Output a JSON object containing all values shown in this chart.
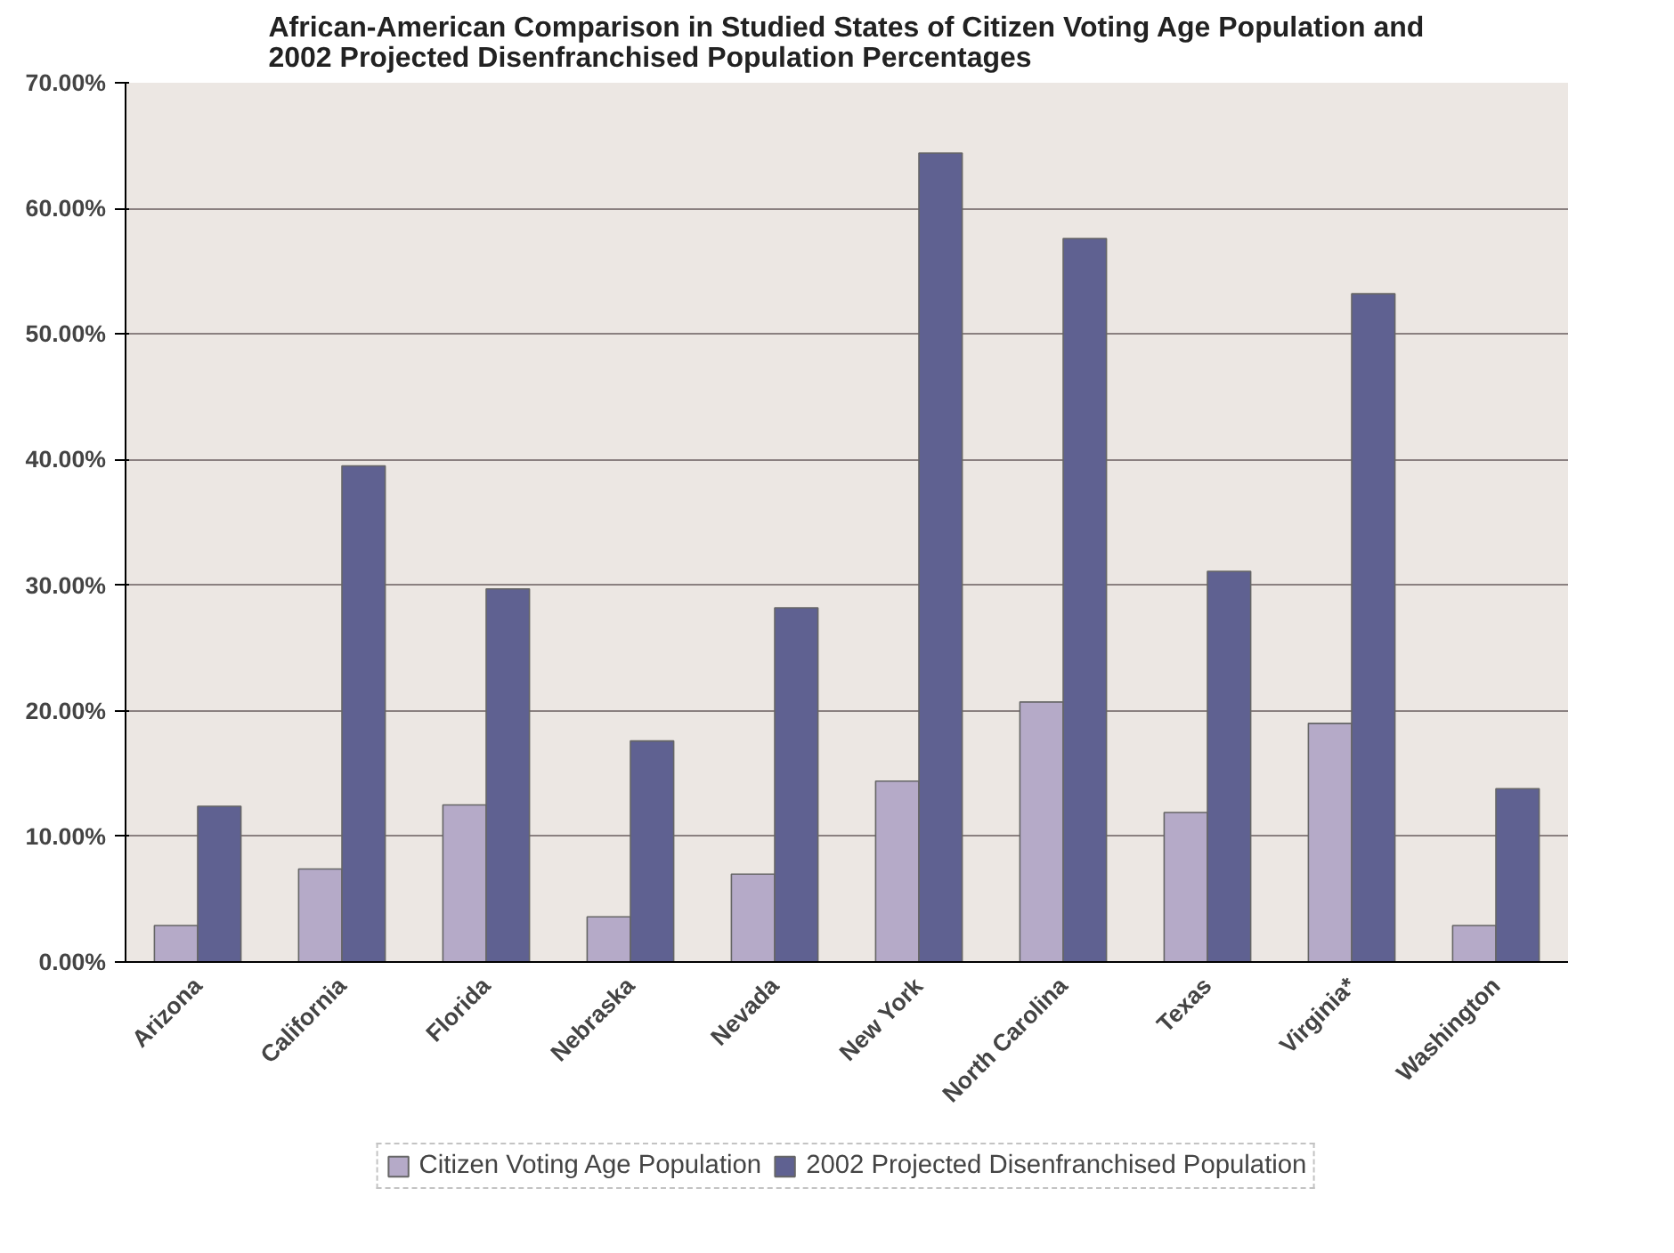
{
  "chart_data": {
    "type": "bar",
    "title": "African-American Comparison in Studied States of Citizen Voting Age Population and\n2002 Projected Disenfranchised Population Percentages",
    "categories": [
      "Arizona",
      "California",
      "Florida",
      "Nebraska",
      "Nevada",
      "New York",
      "North Carolina",
      "Texas",
      "Virginia*",
      "Washington"
    ],
    "series": [
      {
        "name": "Citizen Voting Age Population",
        "color": "#b5aac8",
        "values": [
          2.9,
          7.4,
          12.5,
          3.6,
          7.0,
          14.4,
          20.7,
          11.9,
          19.0,
          2.9
        ]
      },
      {
        "name": "2002 Projected Disenfranchised Population",
        "color": "#5f6191",
        "values": [
          12.4,
          39.5,
          29.7,
          17.6,
          28.2,
          64.4,
          57.6,
          31.1,
          53.2,
          13.8
        ]
      }
    ],
    "ylim": [
      0,
      70
    ],
    "yticks": [
      {
        "value": 0,
        "label": "0.00%"
      },
      {
        "value": 10,
        "label": "10.00%"
      },
      {
        "value": 20,
        "label": "20.00%"
      },
      {
        "value": 30,
        "label": "30.00%"
      },
      {
        "value": 40,
        "label": "40.00%"
      },
      {
        "value": 50,
        "label": "50.00%"
      },
      {
        "value": 60,
        "label": "60.00%"
      },
      {
        "value": 70,
        "label": "70.00%"
      }
    ],
    "grid": "y",
    "legend": "bottom"
  }
}
